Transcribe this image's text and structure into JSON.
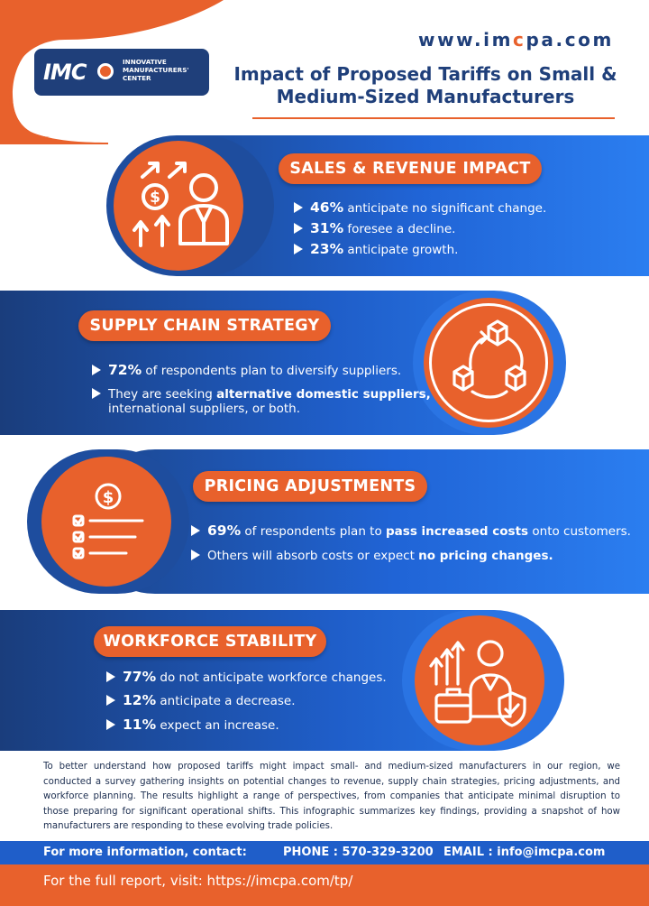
{
  "header": {
    "logo_short": "IMC",
    "logo_line1": "INNOVATIVE",
    "logo_line2": "MANUFACTURERS'",
    "logo_line3": "CENTER",
    "website_prefix": "www.im",
    "website_accent": "c",
    "website_suffix": "pa.com",
    "title_line1": "Impact of Proposed Tariffs on Small &",
    "title_line2": "Medium-Sized Manufacturers"
  },
  "sales": {
    "heading": "SALES & REVENUE IMPACT",
    "icon": "growth-person-icon",
    "items": [
      {
        "pct": "46%",
        "text": " anticipate no significant change."
      },
      {
        "pct": "31%",
        "text": " foresee a decline."
      },
      {
        "pct": "23%",
        "text": " anticipate growth."
      }
    ]
  },
  "supply": {
    "heading": "SUPPLY CHAIN STRATEGY",
    "icon": "supply-cycle-icon",
    "item1_pct": "72%",
    "item1_text": " of respondents plan to diversify suppliers.",
    "item2_pre": "They are seeking ",
    "item2_bold": "alternative domestic suppliers,",
    "item2_post": "international suppliers, or both."
  },
  "pricing": {
    "heading": "PRICING ADJUSTMENTS",
    "icon": "price-checklist-icon",
    "item1_pct": "69%",
    "item1_pre": " of respondents plan to ",
    "item1_bold": "pass increased costs",
    "item1_post": " onto customers.",
    "item2_pre": "Others will absorb costs or expect ",
    "item2_bold": "no pricing changes."
  },
  "workforce": {
    "heading": "WORKFORCE STABILITY",
    "icon": "worker-shield-icon",
    "items": [
      {
        "pct": "77%",
        "text": " do not anticipate workforce changes."
      },
      {
        "pct": "12%",
        "text": " anticipate a decrease."
      },
      {
        "pct": "11%",
        "text": " expect an increase."
      }
    ]
  },
  "summary": "To better understand how proposed tariffs might impact small- and medium-sized manufacturers in our region, we conducted a survey gathering insights on potential changes to revenue, supply chain strategies, pricing adjustments, and workforce planning. The results highlight a range of perspectives, from companies that anticipate minimal disruption to those preparing for significant operational shifts. This infographic summarizes key findings, providing a snapshot of how manufacturers are responding to these evolving trade policies.",
  "contact": {
    "label": "For more information, contact:",
    "phone": "PHONE : 570-329-3200",
    "email": "EMAIL : info@imcpa.com"
  },
  "report": "For the full report, visit: https://imcpa.com/tp/",
  "colors": {
    "orange": "#e8612c",
    "navy": "#1f3f7a",
    "blue": "#2064d6"
  }
}
